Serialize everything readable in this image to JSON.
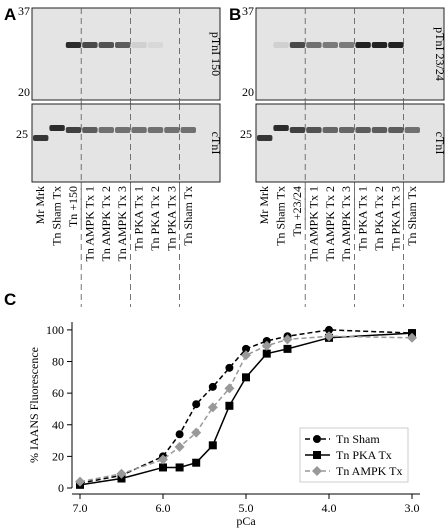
{
  "blots": [
    {
      "label": "A",
      "top_markers": [
        37,
        20
      ],
      "bottom_marker": 25,
      "top_label": "pTnI 150",
      "bottom_label": "cTnI",
      "lanes": [
        "Mr Mrk",
        "Tn Sham Tx",
        "Tn +150",
        "Tn AMPK Tx 1",
        "Tn AMPK Tx 2",
        "Tn AMPK Tx 3",
        "Tn PKA Tx 1",
        "Tn PKA Tx 2",
        "Tn PKA Tx 3",
        "Tn Sham Tx"
      ]
    },
    {
      "label": "B",
      "top_markers": [
        37,
        20
      ],
      "bottom_marker": 25,
      "top_label": "pTnI 23/24",
      "bottom_label": "cTnI",
      "lanes": [
        "Mr Mrk",
        "Tn Sham Tx",
        "Tn +23/24",
        "Tn AMPK Tx 1",
        "Tn AMPK Tx 2",
        "Tn AMPK Tx 3",
        "Tn PKA Tx 1",
        "Tn PKA Tx 2",
        "Tn PKA Tx 3",
        "Tn Sham Tx"
      ]
    }
  ],
  "chart_data": {
    "type": "line",
    "panel_label": "C",
    "xlabel": "pCa",
    "ylabel": "% IAANS Fluorescence",
    "x": [
      7.0,
      6.5,
      6.0,
      5.8,
      5.6,
      5.4,
      5.2,
      5.0,
      4.75,
      4.5,
      4.0,
      3.0
    ],
    "series": [
      {
        "name": "Tn Sham",
        "color": "#000000",
        "marker": "circle",
        "dashed": true,
        "values": [
          3,
          8,
          20,
          34,
          53,
          64,
          76,
          88,
          93,
          96,
          100,
          98
        ]
      },
      {
        "name": "Tn PKA Tx",
        "color": "#000000",
        "marker": "square",
        "dashed": false,
        "values": [
          2,
          6,
          13,
          13,
          16,
          27,
          52,
          70,
          85,
          88,
          95,
          98
        ]
      },
      {
        "name": "Tn AMPK Tx",
        "color": "#999999",
        "marker": "diamond",
        "dashed": true,
        "values": [
          4,
          9,
          18,
          26,
          35,
          51,
          63,
          84,
          90,
          94,
          96,
          95
        ]
      }
    ],
    "xlim": [
      7.0,
      3.0
    ],
    "xticks": [
      {
        "value": 7,
        "label": "7.0"
      },
      {
        "value": 6,
        "label": "6.0"
      },
      {
        "value": 5,
        "label": "5.0"
      },
      {
        "value": 4,
        "label": "4.0"
      },
      {
        "value": 3,
        "label": "3.0"
      }
    ],
    "ylim": [
      0,
      105
    ],
    "yticks": [
      0,
      20,
      40,
      60,
      80,
      100
    ],
    "legend": "lower-right"
  }
}
